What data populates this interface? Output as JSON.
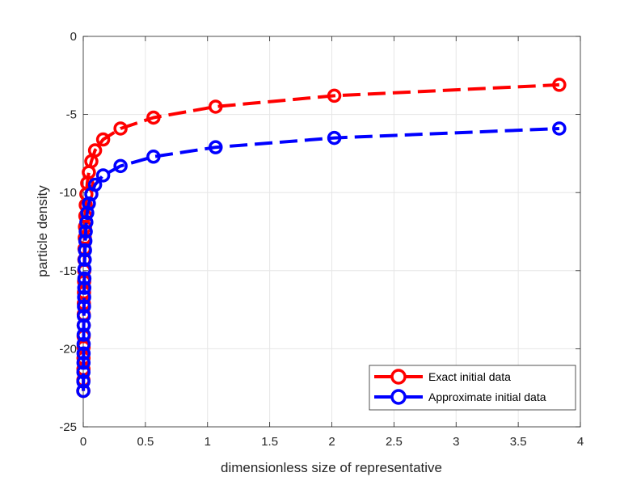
{
  "chart_data": {
    "type": "line",
    "title": "",
    "xlabel": "dimensionless size of representative",
    "ylabel": "particle density",
    "xlim": [
      0,
      4
    ],
    "ylim": [
      -25,
      0
    ],
    "xticks": [
      0,
      0.5,
      1,
      1.5,
      2,
      2.5,
      3,
      3.5,
      4
    ],
    "yticks": [
      0,
      -5,
      -10,
      -15,
      -20,
      -25
    ],
    "xtick_labels": [
      "0",
      "0.5",
      "1",
      "1.5",
      "2",
      "2.5",
      "3",
      "3.5",
      "4"
    ],
    "ytick_labels": [
      "0",
      "-5",
      "-10",
      "-15",
      "-20",
      "-25"
    ],
    "grid": true,
    "legend_position": "bottom-right",
    "series": [
      {
        "name": "Exact initial data",
        "color": "#ff0000",
        "line_style": "dashed",
        "marker": "circle",
        "x": [
          0.0005,
          0.001,
          0.0015,
          0.002,
          0.0025,
          0.003,
          0.0035,
          0.004,
          0.005,
          0.006,
          0.007,
          0.008,
          0.009,
          0.01,
          0.012,
          0.014,
          0.017,
          0.02,
          0.025,
          0.032,
          0.045,
          0.065,
          0.095,
          0.16,
          0.3,
          0.565,
          1.065,
          2.02,
          3.83
        ],
        "y": [
          -22.7,
          -22.0,
          -21.3,
          -20.6,
          -19.9,
          -19.2,
          -18.5,
          -17.8,
          -17.1,
          -16.4,
          -15.7,
          -15.0,
          -14.3,
          -13.6,
          -12.9,
          -12.2,
          -11.5,
          -10.8,
          -10.1,
          -9.4,
          -8.7,
          -8.0,
          -7.3,
          -6.6,
          -5.9,
          -5.2,
          -4.5,
          -3.8,
          -3.1
        ]
      },
      {
        "name": "Approximate initial data",
        "color": "#0000ff",
        "line_style": "dashed",
        "marker": "circle",
        "x": [
          0.0005,
          0.001,
          0.0015,
          0.002,
          0.0025,
          0.003,
          0.0035,
          0.004,
          0.005,
          0.006,
          0.007,
          0.008,
          0.009,
          0.01,
          0.012,
          0.014,
          0.017,
          0.02,
          0.025,
          0.032,
          0.045,
          0.065,
          0.095,
          0.16,
          0.3,
          0.565,
          1.065,
          2.02,
          3.83
        ],
        "y": [
          -22.7,
          -22.1,
          -21.5,
          -20.9,
          -20.3,
          -19.7,
          -19.1,
          -18.5,
          -17.9,
          -17.3,
          -16.7,
          -16.1,
          -15.5,
          -14.9,
          -14.3,
          -13.7,
          -13.1,
          -12.5,
          -11.9,
          -11.3,
          -10.7,
          -10.1,
          -9.5,
          -8.9,
          -8.3,
          -7.7,
          -7.1,
          -6.5,
          -5.9
        ]
      }
    ]
  }
}
